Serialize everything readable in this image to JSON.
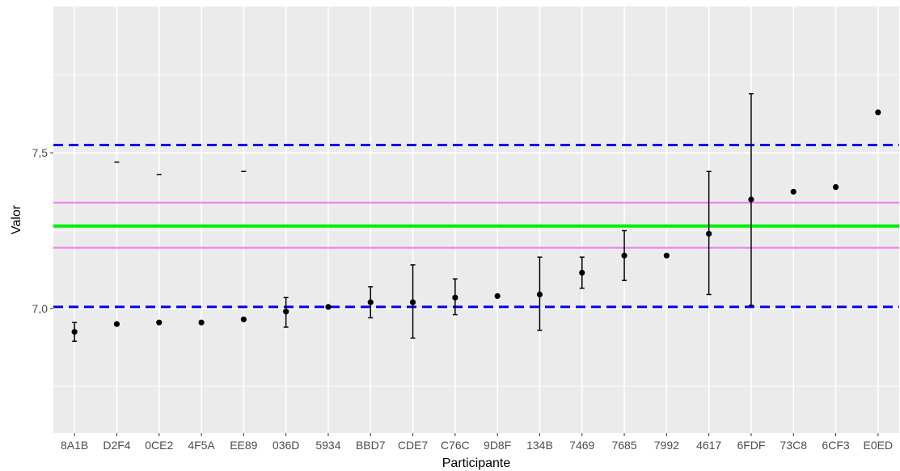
{
  "chart_data": {
    "type": "scatter",
    "title": "",
    "xlabel": "Participante",
    "ylabel": "Valor",
    "ylim": [
      6.6,
      7.97
    ],
    "grid": true,
    "colors": {
      "panel": "#ebebeb",
      "grid": "#ffffff",
      "points": "#000000",
      "assigned_value": "#00ee00",
      "uncertainty_band": "#ee82ee",
      "limits": "#0000ee"
    },
    "y_ticks": [
      {
        "value": 7.0,
        "label": "7,0"
      },
      {
        "value": 7.5,
        "label": "7,5"
      }
    ],
    "categories": [
      "8A1B",
      "D2F4",
      "0CE2",
      "4F5A",
      "EE89",
      "036D",
      "5934",
      "BBD7",
      "CDE7",
      "C76C",
      "9D8F",
      "134B",
      "7469",
      "7685",
      "7992",
      "4617",
      "6FDF",
      "73C8",
      "6CF3",
      "E0ED"
    ],
    "values": [
      6.925,
      6.95,
      6.955,
      6.955,
      6.965,
      6.99,
      7.005,
      7.02,
      7.02,
      7.035,
      7.04,
      7.045,
      7.115,
      7.17,
      7.17,
      7.24,
      7.35,
      7.375,
      7.39,
      7.63
    ],
    "error_low": [
      6.895,
      null,
      null,
      null,
      null,
      6.94,
      null,
      6.97,
      6.905,
      6.98,
      null,
      6.93,
      7.065,
      7.09,
      null,
      7.045,
      7.01,
      null,
      null,
      null
    ],
    "error_high": [
      6.955,
      null,
      null,
      null,
      null,
      7.035,
      null,
      7.07,
      7.14,
      7.095,
      null,
      7.165,
      7.165,
      7.25,
      null,
      7.44,
      7.69,
      null,
      null,
      null
    ],
    "dash_marks": [
      {
        "category": "D2F4",
        "value": 7.47
      },
      {
        "category": "0CE2",
        "value": 7.43
      },
      {
        "category": "EE89",
        "value": 7.44
      }
    ],
    "reference_lines": [
      {
        "role": "assigned_value",
        "value": 7.265,
        "style": "solid"
      },
      {
        "role": "uncertainty_upper",
        "value": 7.34,
        "style": "solid"
      },
      {
        "role": "uncertainty_lower",
        "value": 7.195,
        "style": "solid"
      },
      {
        "role": "upper_limit",
        "value": 7.525,
        "style": "dashed"
      },
      {
        "role": "lower_limit",
        "value": 7.005,
        "style": "dashed"
      }
    ]
  }
}
